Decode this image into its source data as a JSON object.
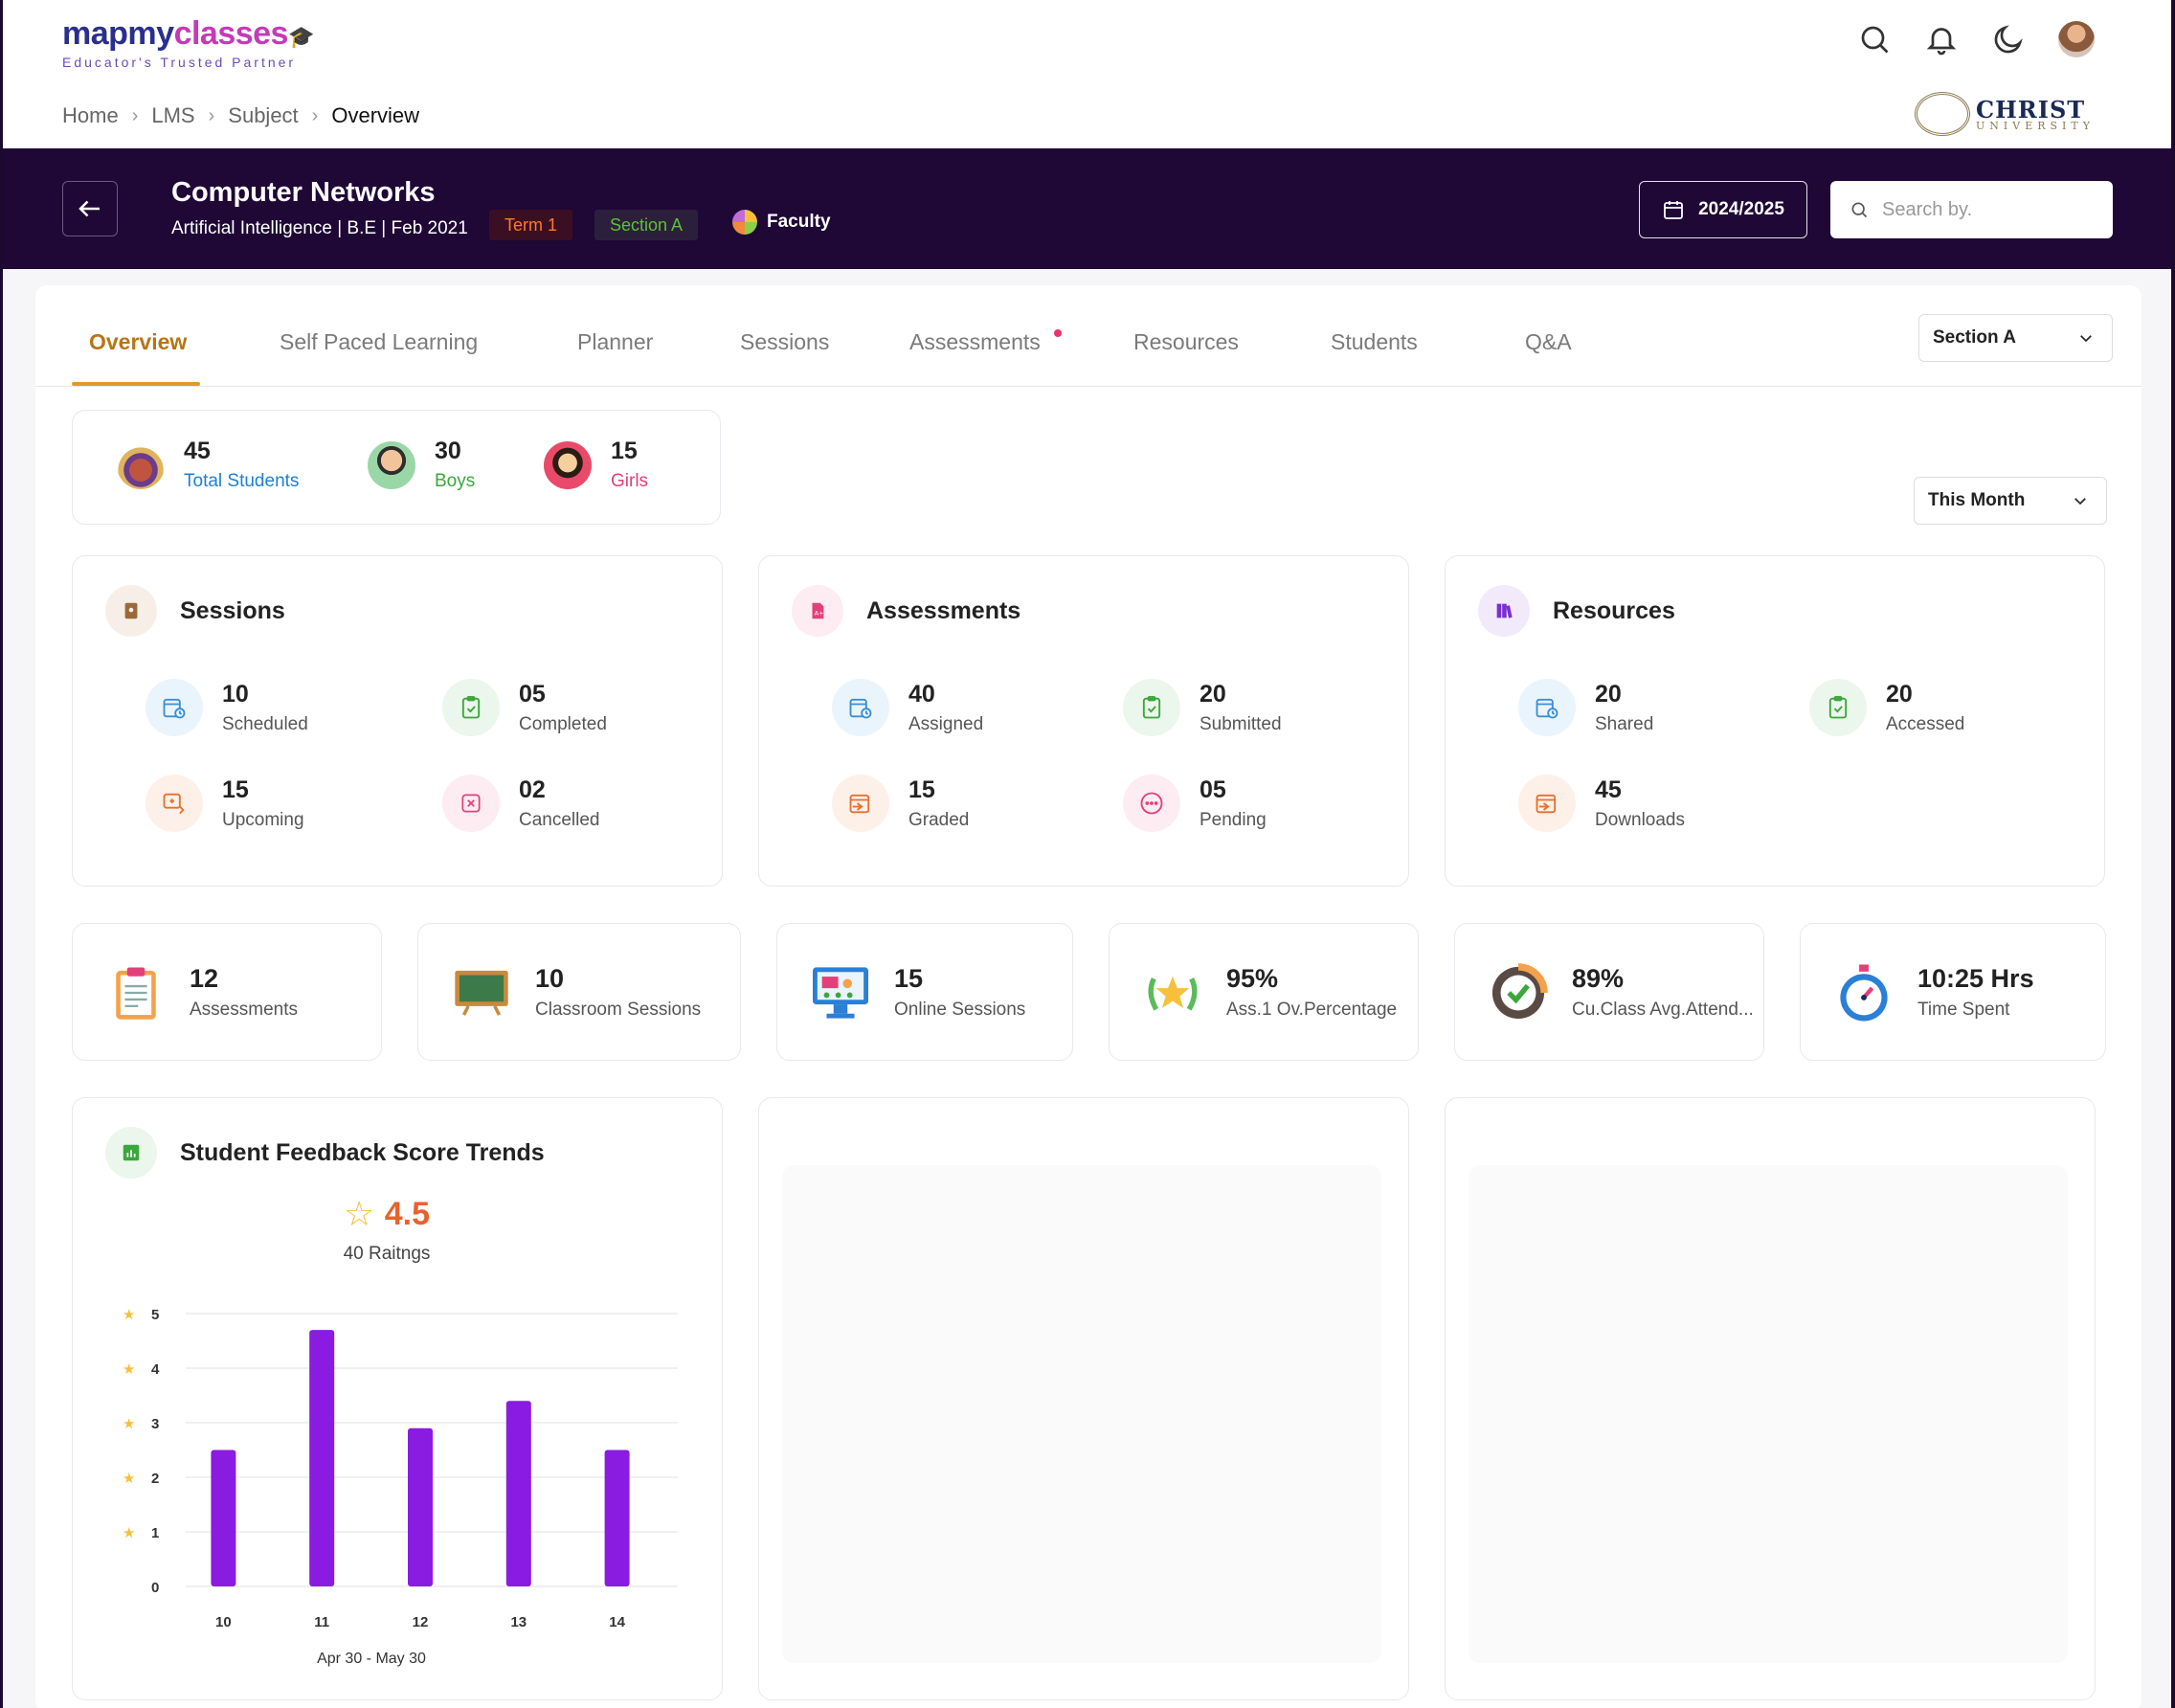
{
  "brand": {
    "name_a": "mapmy",
    "name_b": "classes",
    "tagline": "Educator's Trusted Partner"
  },
  "breadcrumb": [
    "Home",
    "LMS",
    "Subject",
    "Overview"
  ],
  "university": {
    "name": "CHRIST",
    "sub": "UNIVERSITY"
  },
  "course": {
    "title": "Computer Networks",
    "subtitle": "Artificial Intelligence | B.E | Feb 2021",
    "term": "Term 1",
    "section": "Section A",
    "role": "Faculty"
  },
  "year": "2024/2025",
  "search": {
    "placeholder": "Search by."
  },
  "tabs": [
    "Overview",
    "Self Paced Learning",
    "Planner",
    "Sessions",
    "Assessments",
    "Resources",
    "Students",
    "Q&A"
  ],
  "section_select": "Section A",
  "period_select": "This Month",
  "students": {
    "total": {
      "value": "45",
      "label": "Total Students"
    },
    "boys": {
      "value": "30",
      "label": "Boys"
    },
    "girls": {
      "value": "15",
      "label": "Girls"
    }
  },
  "sessions": {
    "title": "Sessions",
    "items": [
      {
        "value": "10",
        "label": "Scheduled"
      },
      {
        "value": "05",
        "label": "Completed"
      },
      {
        "value": "15",
        "label": "Upcoming"
      },
      {
        "value": "02",
        "label": "Cancelled"
      }
    ]
  },
  "assessments": {
    "title": "Assessments",
    "items": [
      {
        "value": "40",
        "label": "Assigned"
      },
      {
        "value": "20",
        "label": "Submitted"
      },
      {
        "value": "15",
        "label": "Graded"
      },
      {
        "value": "05",
        "label": "Pending"
      }
    ]
  },
  "resources": {
    "title": "Resources",
    "items": [
      {
        "value": "20",
        "label": "Shared"
      },
      {
        "value": "20",
        "label": "Accessed"
      },
      {
        "value": "45",
        "label": "Downloads"
      }
    ]
  },
  "stats": [
    {
      "value": "12",
      "label": "Assessments",
      "icon": "clipboard-icon"
    },
    {
      "value": "10",
      "label": "Classroom Sessions",
      "icon": "blackboard-icon"
    },
    {
      "value": "15",
      "label": "Online Sessions",
      "icon": "monitor-icon"
    },
    {
      "value": "95%",
      "label": "Ass.1 Ov.Percentage",
      "icon": "laurel-star-icon"
    },
    {
      "value": "89%",
      "label": "Cu.Class Avg.Attend...",
      "icon": "attendance-clock-icon"
    },
    {
      "value": "10:25 Hrs",
      "label": "Time Spent",
      "icon": "stopwatch-icon"
    }
  ],
  "feedback": {
    "title": "Student Feedback Score Trends",
    "score": "4.5",
    "ratings": "40 Raitngs"
  },
  "chart_data": {
    "type": "bar",
    "categories": [
      "10",
      "11",
      "12",
      "13",
      "14"
    ],
    "values": [
      2.5,
      4.7,
      2.9,
      3.4,
      2.5
    ],
    "xlabel": "Apr 30 - May 30",
    "ylabel": "",
    "ylim": [
      0,
      5
    ],
    "yticks": [
      "0",
      "1",
      "2",
      "3",
      "4",
      "5"
    ],
    "bar_color": "#8a1be0",
    "grid": true
  },
  "colors": {
    "banner": "#1f0736",
    "accent": "#e09a2a",
    "tab_active": "#b77514",
    "bar": "#8a1be0"
  }
}
